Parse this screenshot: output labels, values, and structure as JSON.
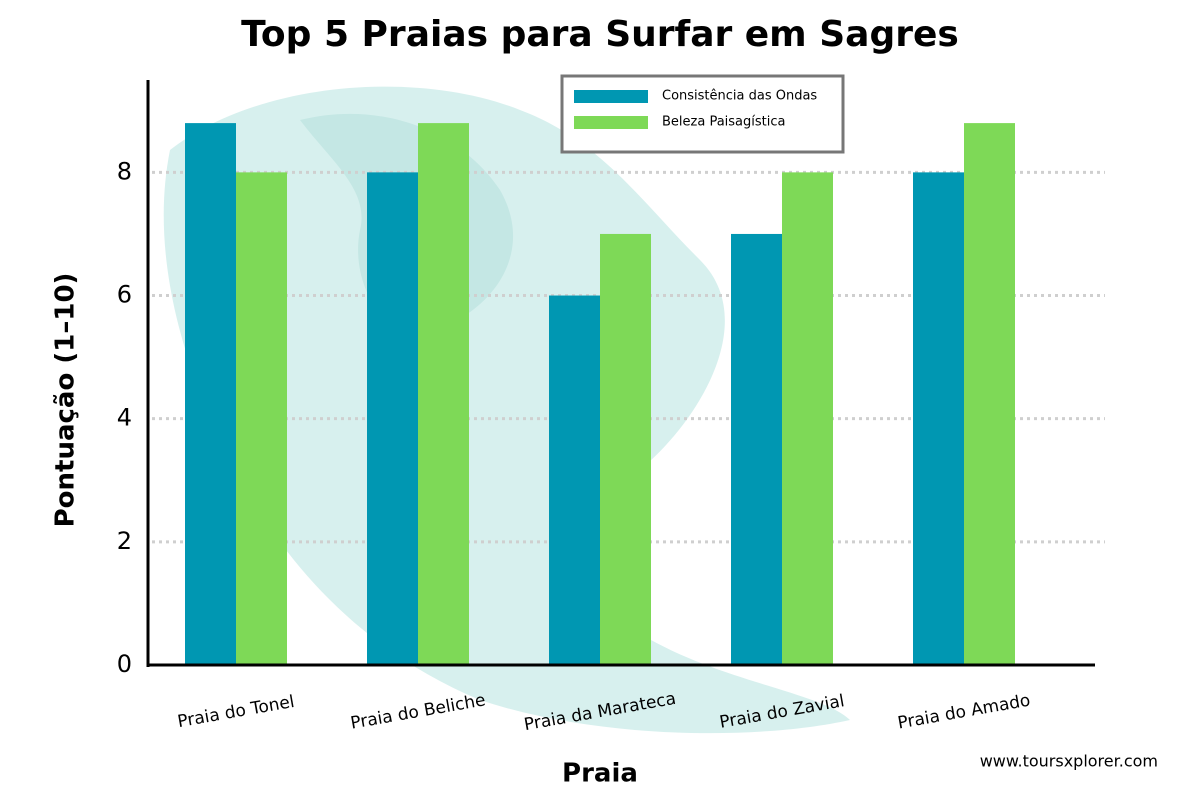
{
  "chart_data": {
    "type": "bar",
    "title": "Top 5 Praias para Surfar em Sagres",
    "x_label": "Praia",
    "y_label": "Pontuação (1–10)",
    "footer": "www.toursxplorer.com",
    "categories": [
      "Praia do Tonel",
      "Praia do Beliche",
      "Praia da Marateca",
      "Praia do Zavial",
      "Praia do Amado"
    ],
    "series": [
      {
        "name": "Consistência das Ondas",
        "color": "#0097b2",
        "values": [
          8.8,
          8,
          6,
          7,
          8
        ]
      },
      {
        "name": "Beleza Paisagística",
        "color": "#7ed957",
        "values": [
          8,
          8.8,
          7,
          8,
          8.8
        ]
      }
    ],
    "ylim": [
      0,
      9.5
    ],
    "yticks": [
      0,
      2,
      4,
      6,
      8
    ],
    "grid": true,
    "legend": "upper center"
  }
}
